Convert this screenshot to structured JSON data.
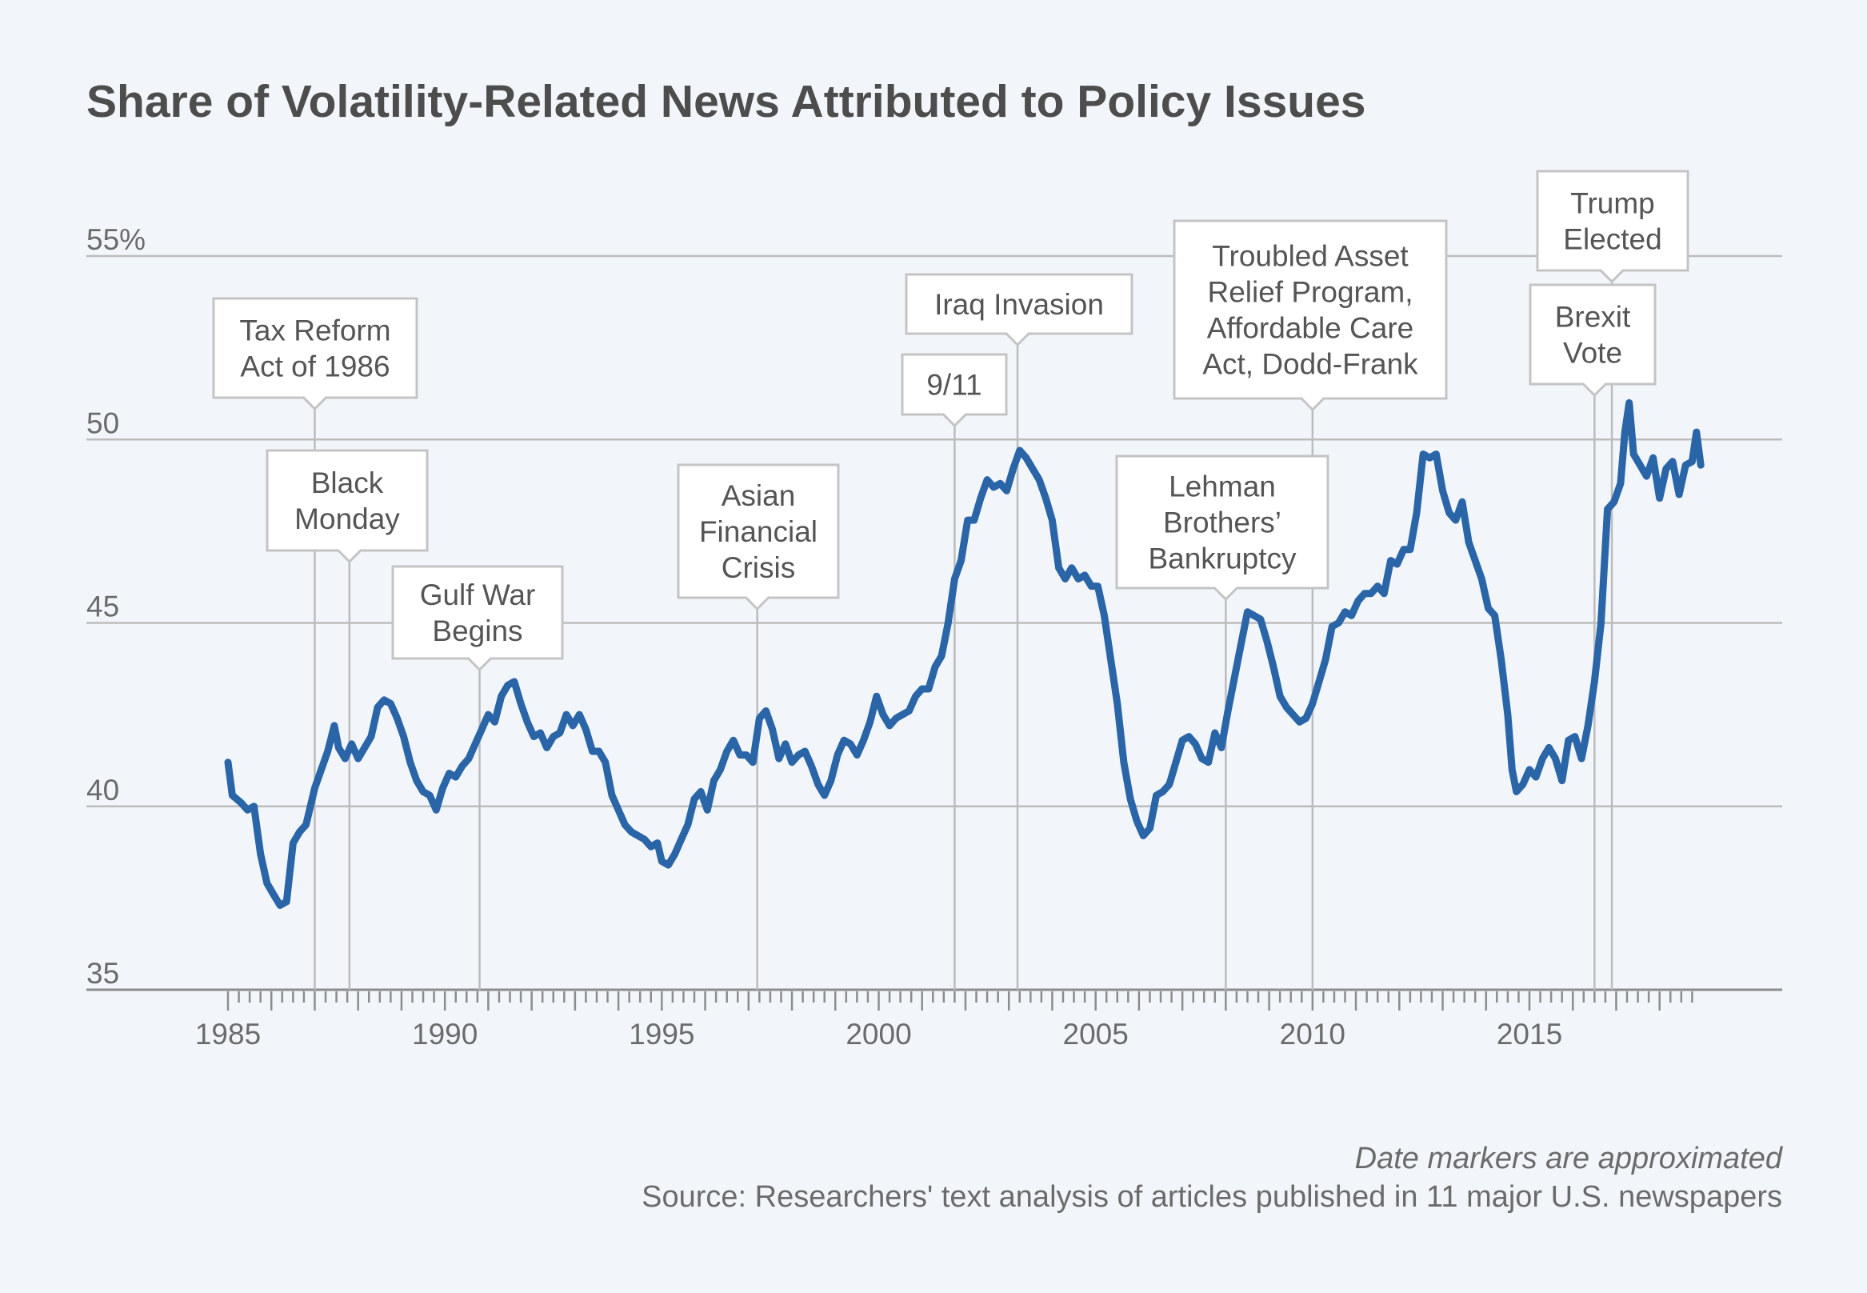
{
  "chart_data": {
    "type": "line",
    "title": "Share of Volatility-Related News Attributed to Policy Issues",
    "xlabel": "",
    "ylabel": "",
    "xlim": [
      1984.5,
      2019.8
    ],
    "ylim": [
      35,
      55
    ],
    "grid": true,
    "yticks": [
      {
        "value": 35,
        "label": "35"
      },
      {
        "value": 40,
        "label": "40"
      },
      {
        "value": 45,
        "label": "45"
      },
      {
        "value": 50,
        "label": "50"
      },
      {
        "value": 55,
        "label": "55%"
      }
    ],
    "xticks": [
      {
        "value": 1985,
        "label": "1985"
      },
      {
        "value": 1990,
        "label": "1990"
      },
      {
        "value": 1995,
        "label": "1995"
      },
      {
        "value": 2000,
        "label": "2000"
      },
      {
        "value": 2005,
        "label": "2005"
      },
      {
        "value": 2010,
        "label": "2010"
      },
      {
        "value": 2015,
        "label": "2015"
      }
    ],
    "minor_tick_years": [
      1985,
      1986,
      1987,
      1988,
      1989,
      1990,
      1991,
      1992,
      1993,
      1994,
      1995,
      1996,
      1997,
      1998,
      1999,
      2000,
      2001,
      2002,
      2003,
      2004,
      2005,
      2006,
      2007,
      2008,
      2009,
      2010,
      2011,
      2012,
      2013,
      2014,
      2015,
      2016,
      2017,
      2018
    ],
    "series": [
      {
        "color": "#2a65a8",
        "points": [
          [
            1985.0,
            41.2
          ],
          [
            1985.1,
            40.3
          ],
          [
            1985.3,
            40.1
          ],
          [
            1985.45,
            39.9
          ],
          [
            1985.6,
            40.0
          ],
          [
            1985.75,
            38.7
          ],
          [
            1985.9,
            37.9
          ],
          [
            1986.05,
            37.6
          ],
          [
            1986.2,
            37.3
          ],
          [
            1986.35,
            37.4
          ],
          [
            1986.5,
            39.0
          ],
          [
            1986.65,
            39.3
          ],
          [
            1986.8,
            39.5
          ],
          [
            1987.0,
            40.5
          ],
          [
            1987.15,
            41.0
          ],
          [
            1987.3,
            41.5
          ],
          [
            1987.45,
            42.2
          ],
          [
            1987.55,
            41.6
          ],
          [
            1987.7,
            41.3
          ],
          [
            1987.85,
            41.7
          ],
          [
            1988.0,
            41.3
          ],
          [
            1988.15,
            41.6
          ],
          [
            1988.3,
            41.9
          ],
          [
            1988.45,
            42.7
          ],
          [
            1988.6,
            42.9
          ],
          [
            1988.75,
            42.8
          ],
          [
            1988.9,
            42.4
          ],
          [
            1989.05,
            41.9
          ],
          [
            1989.2,
            41.2
          ],
          [
            1989.35,
            40.7
          ],
          [
            1989.5,
            40.4
          ],
          [
            1989.65,
            40.3
          ],
          [
            1989.8,
            39.9
          ],
          [
            1989.95,
            40.5
          ],
          [
            1990.1,
            40.9
          ],
          [
            1990.25,
            40.8
          ],
          [
            1990.4,
            41.1
          ],
          [
            1990.55,
            41.3
          ],
          [
            1990.7,
            41.7
          ],
          [
            1990.85,
            42.1
          ],
          [
            1991.0,
            42.5
          ],
          [
            1991.15,
            42.3
          ],
          [
            1991.3,
            43.0
          ],
          [
            1991.45,
            43.3
          ],
          [
            1991.6,
            43.4
          ],
          [
            1991.75,
            42.8
          ],
          [
            1991.9,
            42.3
          ],
          [
            1992.05,
            41.9
          ],
          [
            1992.2,
            42.0
          ],
          [
            1992.35,
            41.6
          ],
          [
            1992.5,
            41.9
          ],
          [
            1992.65,
            42.0
          ],
          [
            1992.8,
            42.5
          ],
          [
            1992.95,
            42.2
          ],
          [
            1993.1,
            42.5
          ],
          [
            1993.25,
            42.1
          ],
          [
            1993.4,
            41.5
          ],
          [
            1993.55,
            41.5
          ],
          [
            1993.7,
            41.2
          ],
          [
            1993.85,
            40.3
          ],
          [
            1994.0,
            39.9
          ],
          [
            1994.15,
            39.5
          ],
          [
            1994.3,
            39.3
          ],
          [
            1994.45,
            39.2
          ],
          [
            1994.6,
            39.1
          ],
          [
            1994.75,
            38.9
          ],
          [
            1994.9,
            39.0
          ],
          [
            1995.0,
            38.5
          ],
          [
            1995.15,
            38.4
          ],
          [
            1995.3,
            38.7
          ],
          [
            1995.45,
            39.1
          ],
          [
            1995.6,
            39.5
          ],
          [
            1995.75,
            40.2
          ],
          [
            1995.9,
            40.4
          ],
          [
            1996.05,
            39.9
          ],
          [
            1996.2,
            40.7
          ],
          [
            1996.35,
            41.0
          ],
          [
            1996.5,
            41.5
          ],
          [
            1996.65,
            41.8
          ],
          [
            1996.8,
            41.4
          ],
          [
            1996.95,
            41.4
          ],
          [
            1997.1,
            41.2
          ],
          [
            1997.25,
            42.4
          ],
          [
            1997.4,
            42.6
          ],
          [
            1997.55,
            42.1
          ],
          [
            1997.7,
            41.3
          ],
          [
            1997.85,
            41.7
          ],
          [
            1998.0,
            41.2
          ],
          [
            1998.15,
            41.4
          ],
          [
            1998.3,
            41.5
          ],
          [
            1998.45,
            41.1
          ],
          [
            1998.6,
            40.6
          ],
          [
            1998.75,
            40.3
          ],
          [
            1998.9,
            40.7
          ],
          [
            1999.05,
            41.4
          ],
          [
            1999.2,
            41.8
          ],
          [
            1999.35,
            41.7
          ],
          [
            1999.5,
            41.4
          ],
          [
            1999.65,
            41.8
          ],
          [
            1999.8,
            42.3
          ],
          [
            1999.95,
            43.0
          ],
          [
            2000.1,
            42.5
          ],
          [
            2000.25,
            42.2
          ],
          [
            2000.4,
            42.4
          ],
          [
            2000.55,
            42.5
          ],
          [
            2000.7,
            42.6
          ],
          [
            2000.85,
            43.0
          ],
          [
            2001.0,
            43.2
          ],
          [
            2001.15,
            43.2
          ],
          [
            2001.3,
            43.8
          ],
          [
            2001.45,
            44.1
          ],
          [
            2001.6,
            45.0
          ],
          [
            2001.75,
            46.2
          ],
          [
            2001.9,
            46.7
          ],
          [
            2002.05,
            47.8
          ],
          [
            2002.2,
            47.8
          ],
          [
            2002.35,
            48.4
          ],
          [
            2002.5,
            48.9
          ],
          [
            2002.65,
            48.7
          ],
          [
            2002.8,
            48.8
          ],
          [
            2002.95,
            48.6
          ],
          [
            2003.1,
            49.2
          ],
          [
            2003.25,
            49.7
          ],
          [
            2003.4,
            49.5
          ],
          [
            2003.55,
            49.2
          ],
          [
            2003.7,
            48.9
          ],
          [
            2003.85,
            48.4
          ],
          [
            2004.0,
            47.8
          ],
          [
            2004.15,
            46.5
          ],
          [
            2004.3,
            46.2
          ],
          [
            2004.45,
            46.5
          ],
          [
            2004.6,
            46.2
          ],
          [
            2004.75,
            46.3
          ],
          [
            2004.9,
            46.0
          ],
          [
            2005.05,
            46.0
          ],
          [
            2005.2,
            45.2
          ],
          [
            2005.35,
            44.0
          ],
          [
            2005.5,
            42.8
          ],
          [
            2005.65,
            41.2
          ],
          [
            2005.8,
            40.2
          ],
          [
            2005.95,
            39.6
          ],
          [
            2006.1,
            39.2
          ],
          [
            2006.25,
            39.4
          ],
          [
            2006.4,
            40.3
          ],
          [
            2006.55,
            40.4
          ],
          [
            2006.7,
            40.6
          ],
          [
            2006.85,
            41.2
          ],
          [
            2007.0,
            41.8
          ],
          [
            2007.15,
            41.9
          ],
          [
            2007.3,
            41.7
          ],
          [
            2007.45,
            41.3
          ],
          [
            2007.6,
            41.2
          ],
          [
            2007.75,
            42.0
          ],
          [
            2007.9,
            41.6
          ],
          [
            2008.05,
            42.6
          ],
          [
            2008.2,
            43.5
          ],
          [
            2008.35,
            44.4
          ],
          [
            2008.5,
            45.3
          ],
          [
            2008.65,
            45.2
          ],
          [
            2008.8,
            45.1
          ],
          [
            2008.95,
            44.5
          ],
          [
            2009.1,
            43.8
          ],
          [
            2009.25,
            43.0
          ],
          [
            2009.4,
            42.7
          ],
          [
            2009.55,
            42.5
          ],
          [
            2009.7,
            42.3
          ],
          [
            2009.85,
            42.4
          ],
          [
            2010.0,
            42.8
          ],
          [
            2010.15,
            43.4
          ],
          [
            2010.3,
            44.0
          ],
          [
            2010.45,
            44.9
          ],
          [
            2010.6,
            45.0
          ],
          [
            2010.75,
            45.3
          ],
          [
            2010.9,
            45.2
          ],
          [
            2011.05,
            45.6
          ],
          [
            2011.2,
            45.8
          ],
          [
            2011.35,
            45.8
          ],
          [
            2011.5,
            46.0
          ],
          [
            2011.65,
            45.8
          ],
          [
            2011.8,
            46.7
          ],
          [
            2011.95,
            46.6
          ],
          [
            2012.1,
            47.0
          ],
          [
            2012.25,
            47.0
          ],
          [
            2012.4,
            48.0
          ],
          [
            2012.55,
            49.6
          ],
          [
            2012.7,
            49.5
          ],
          [
            2012.85,
            49.6
          ],
          [
            2013.0,
            48.6
          ],
          [
            2013.15,
            48.0
          ],
          [
            2013.3,
            47.8
          ],
          [
            2013.45,
            48.3
          ],
          [
            2013.6,
            47.2
          ],
          [
            2013.75,
            46.7
          ],
          [
            2013.9,
            46.2
          ],
          [
            2014.05,
            45.4
          ],
          [
            2014.2,
            45.2
          ],
          [
            2014.35,
            44.0
          ],
          [
            2014.5,
            42.5
          ],
          [
            2014.6,
            41.0
          ],
          [
            2014.7,
            40.4
          ],
          [
            2014.85,
            40.6
          ],
          [
            2015.0,
            41.0
          ],
          [
            2015.15,
            40.8
          ],
          [
            2015.3,
            41.3
          ],
          [
            2015.45,
            41.6
          ],
          [
            2015.6,
            41.3
          ],
          [
            2015.75,
            40.7
          ],
          [
            2015.9,
            41.8
          ],
          [
            2016.05,
            41.9
          ],
          [
            2016.2,
            41.3
          ],
          [
            2016.35,
            42.2
          ],
          [
            2016.5,
            43.4
          ],
          [
            2016.65,
            45.0
          ],
          [
            2016.8,
            48.1
          ],
          [
            2016.95,
            48.3
          ],
          [
            2017.1,
            48.8
          ],
          [
            2017.2,
            50.2
          ],
          [
            2017.3,
            51.0
          ],
          [
            2017.4,
            49.6
          ],
          [
            2017.55,
            49.3
          ],
          [
            2017.7,
            49.0
          ],
          [
            2017.85,
            49.5
          ],
          [
            2018.0,
            48.4
          ],
          [
            2018.15,
            49.2
          ],
          [
            2018.3,
            49.4
          ],
          [
            2018.45,
            48.5
          ],
          [
            2018.6,
            49.3
          ],
          [
            2018.75,
            49.4
          ],
          [
            2018.85,
            50.2
          ],
          [
            2018.95,
            49.3
          ]
        ]
      }
    ],
    "annotations": [
      {
        "label": "Tax Reform Act of 1986",
        "lines": [
          "Tax Reform",
          "Act of 1986"
        ],
        "x": 1987.0
      },
      {
        "label": "Black Monday",
        "lines": [
          "Black",
          "Monday"
        ],
        "x": 1987.8
      },
      {
        "label": "Gulf War Begins",
        "lines": [
          "Gulf War",
          "Begins"
        ],
        "x": 1990.8
      },
      {
        "label": "Asian Financial Crisis",
        "lines": [
          "Asian",
          "Financial",
          "Crisis"
        ],
        "x": 1997.2
      },
      {
        "label": "9/11",
        "lines": [
          "9/11"
        ],
        "x": 2001.75
      },
      {
        "label": "Iraq Invasion",
        "lines": [
          "Iraq Invasion"
        ],
        "x": 2003.2
      },
      {
        "label": "Lehman Brothers' Bankruptcy",
        "lines": [
          "Lehman",
          "Brothers’",
          "Bankruptcy"
        ],
        "x": 2008.0
      },
      {
        "label": "Troubled Asset Relief Program, Affordable Care Act, Dodd-Frank",
        "lines": [
          "Troubled Asset",
          "Relief Program,",
          "Affordable Care",
          "Act, Dodd-Frank"
        ],
        "x": 2010.0
      },
      {
        "label": "Brexit Vote",
        "lines": [
          "Brexit",
          "Vote"
        ],
        "x": 2016.5
      },
      {
        "label": "Trump Elected",
        "lines": [
          "Trump",
          "Elected"
        ],
        "x": 2016.9
      }
    ],
    "notes": {
      "date_note": "Date markers are approximated",
      "source": "Source: Researchers' text analysis of articles published in 11 major U.S. newspapers"
    }
  },
  "colors": {
    "background": "#f2f6fb",
    "line": "#2a65a8",
    "grid": "#bcbcbc",
    "axis": "#8c8c8c",
    "text": "#6b6b6b",
    "title": "#4d4d4d"
  }
}
